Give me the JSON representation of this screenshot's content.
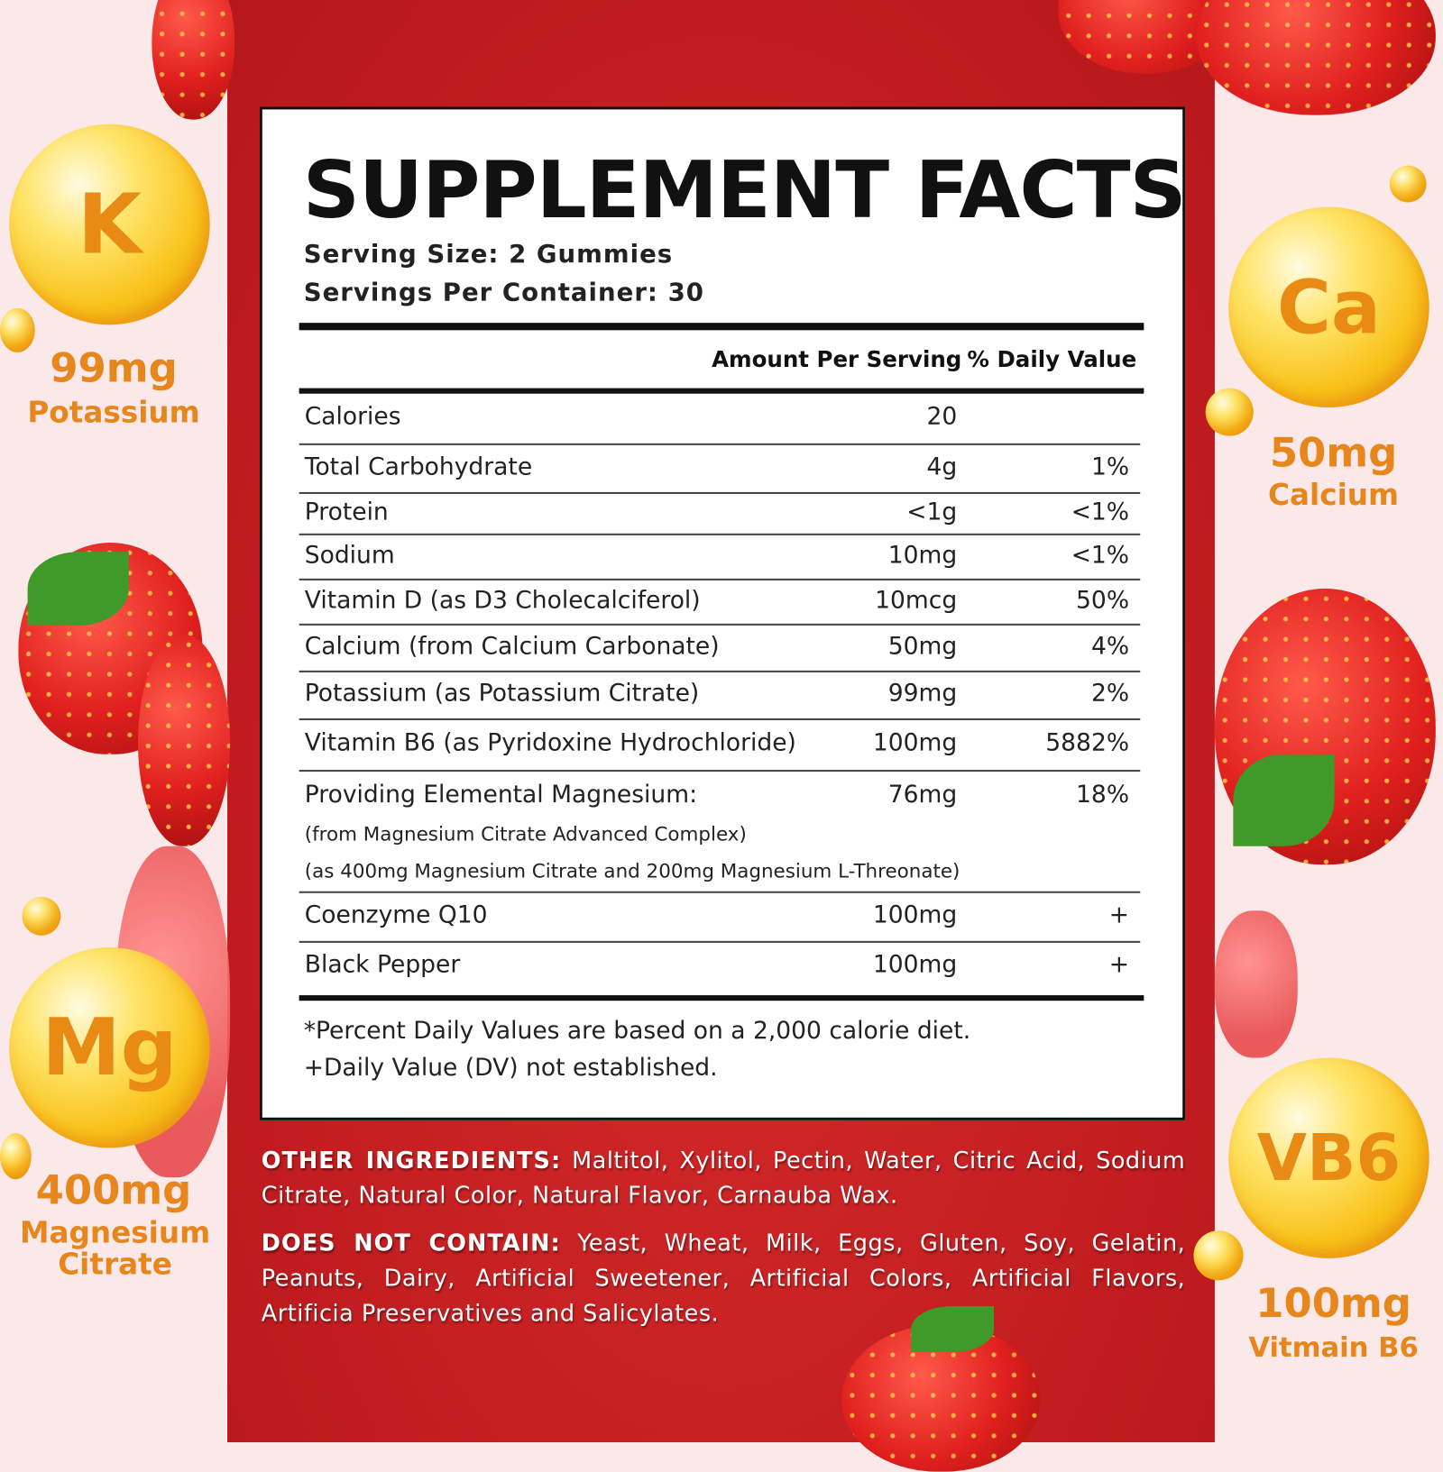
{
  "title": "SUPPLEMENT FACTS",
  "serving_size": "Serving Size: 2 Gummies",
  "servings_per_container": "Servings Per Container: 30",
  "headers": {
    "amount": "Amount Per Serving",
    "dv": "% Daily Value"
  },
  "rows": [
    {
      "name": "Calories",
      "amount": "20",
      "dv": ""
    },
    {
      "name": "Total Carbohydrate",
      "amount": "4g",
      "dv": "1%"
    },
    {
      "name": "Protein",
      "amount": "<1g",
      "dv": "<1%"
    },
    {
      "name": "Sodium",
      "amount": "10mg",
      "dv": "<1%"
    },
    {
      "name": "Vitamin D (as D3 Cholecalciferol)",
      "amount": "10mcg",
      "dv": "50%"
    },
    {
      "name": "Calcium (from Calcium Carbonate)",
      "amount": "50mg",
      "dv": "4%"
    },
    {
      "name": "Potassium (as Potassium Citrate)",
      "amount": "99mg",
      "dv": "2%"
    },
    {
      "name": "Vitamin B6 (as Pyridoxine Hydrochloride)",
      "amount": "100mg",
      "dv": "5882%"
    },
    {
      "name": "Providing Elemental Magnesium:",
      "amount": "76mg",
      "dv": "18%",
      "sub1": "(from Magnesium Citrate Advanced Complex)",
      "sub2": "(as 400mg Magnesium Citrate and 200mg Magnesium L-Threonate)"
    },
    {
      "name": "Coenzyme Q10",
      "amount": "100mg",
      "dv": "+"
    },
    {
      "name": "Black Pepper",
      "amount": "100mg",
      "dv": "+"
    }
  ],
  "footnotes": [
    "*Percent Daily Values are based on a 2,000 calorie diet.",
    "+Daily Value (DV) not established."
  ],
  "other_ingredients": {
    "label": "OTHER INGREDIENTS:",
    "text": "Maltitol, Xylitol, Pectin, Water, Citric Acid, Sodium Citrate, Natural Color, Natural Flavor, Carnauba Wax."
  },
  "does_not_contain": {
    "label": "DOES NOT CONTAIN:",
    "text": "Yeast, Wheat, Milk, Eggs, Gluten, Soy, Gelatin, Peanuts, Dairy, Artificial Sweetener, Artificial Colors, Artificial Flavors, Artificia Preservatives and Salicylates."
  },
  "badges": [
    {
      "symbol": "K",
      "amount": "99mg",
      "label": "Potassium"
    },
    {
      "symbol": "Ca",
      "amount": "50mg",
      "label": "Calcium"
    },
    {
      "symbol": "Mg",
      "amount": "400mg",
      "label": "Magnesium Citrate"
    },
    {
      "symbol": "VB6",
      "amount": "100mg",
      "label": "Vitmain B6"
    }
  ],
  "colors": {
    "red": "#c41e20",
    "pink": "#fbe8e8",
    "orange": "#e6861c",
    "gold": "#f8c21a"
  }
}
